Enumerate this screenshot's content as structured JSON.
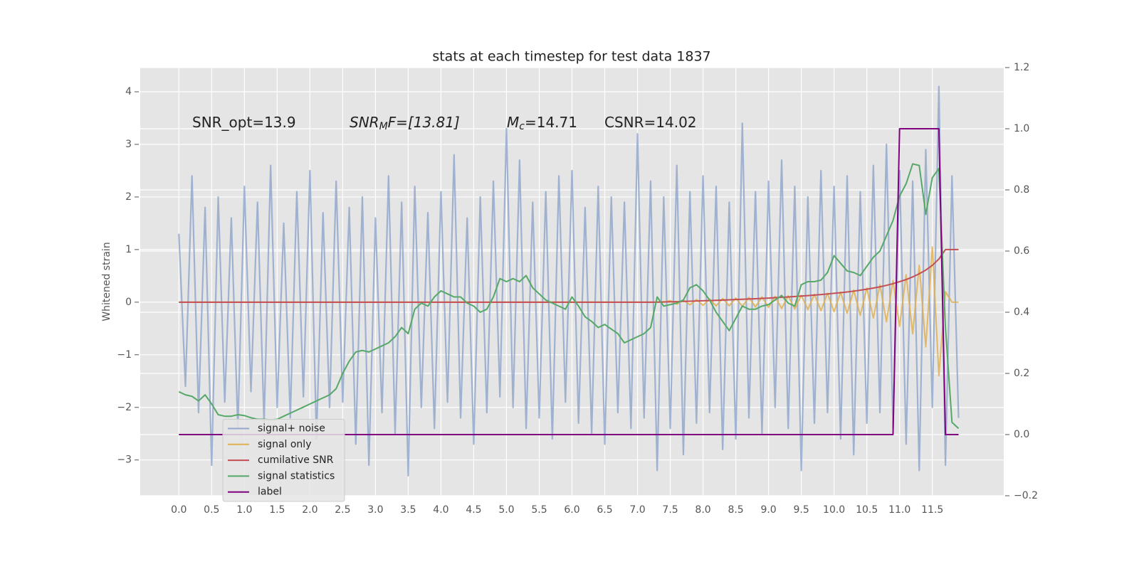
{
  "chart_data": {
    "type": "line",
    "title": "stats at each timestep for test data 1837",
    "y_label": "Whitened strain",
    "annotations": [
      {
        "text": "SNR_opt=13.9"
      },
      {
        "math": "SNR",
        "sub": "M",
        "text": "F=[13.81]"
      },
      {
        "math": "M",
        "sub": "c",
        "text": "=14.71"
      },
      {
        "text": "CSNR=14.02"
      }
    ],
    "xlim": [
      -0.59,
      12.59
    ],
    "ylim": [
      -3.68,
      4.46
    ],
    "y2lim": [
      -0.2,
      1.2
    ],
    "xticks": [
      {
        "value": 0,
        "label": "0.0"
      },
      0.5,
      {
        "value": 1,
        "label": "1.0"
      },
      1.5,
      {
        "value": 2,
        "label": "2.0"
      },
      2.5,
      {
        "value": 3,
        "label": "3.0"
      },
      3.5,
      {
        "value": 4,
        "label": "4.0"
      },
      4.5,
      {
        "value": 5,
        "label": "5.0"
      },
      5.5,
      {
        "value": 6,
        "label": "6.0"
      },
      6.5,
      {
        "value": 7,
        "label": "7.0"
      },
      7.5,
      {
        "value": 8,
        "label": "8.0"
      },
      8.5,
      {
        "value": 9,
        "label": "9.0"
      },
      9.5,
      {
        "value": 10,
        "label": "10.0"
      },
      10.5,
      {
        "value": 11,
        "label": "11.0"
      },
      11.5
    ],
    "yticks": [
      {
        "value": -3,
        "label": "−3"
      },
      {
        "value": -2,
        "label": "−2"
      },
      {
        "value": -1,
        "label": "−1"
      },
      0,
      1,
      2,
      3,
      4
    ],
    "y2ticks": [
      {
        "value": -0.2,
        "label": "−0.2"
      },
      {
        "value": 0,
        "label": "0.0"
      },
      0.2,
      0.4,
      0.6,
      0.8,
      {
        "value": 1,
        "label": "1.0"
      },
      1.2
    ],
    "grid": true,
    "legend": "lower left",
    "x": [
      0,
      0.1,
      0.2,
      0.3,
      0.4,
      0.5,
      0.6,
      0.7,
      0.8,
      0.9,
      1,
      1.1,
      1.2,
      1.3,
      1.4,
      1.5,
      1.6,
      1.7,
      1.8,
      1.9,
      2,
      2.1,
      2.2,
      2.3,
      2.4,
      2.5,
      2.6,
      2.7,
      2.8,
      2.9,
      3,
      3.1,
      3.2,
      3.3,
      3.4,
      3.5,
      3.6,
      3.7,
      3.8,
      3.9,
      4,
      4.1,
      4.2,
      4.3,
      4.4,
      4.5,
      4.6,
      4.7,
      4.8,
      4.9,
      5,
      5.1,
      5.2,
      5.3,
      5.4,
      5.5,
      5.6,
      5.7,
      5.8,
      5.9,
      6,
      6.1,
      6.2,
      6.3,
      6.4,
      6.5,
      6.6,
      6.7,
      6.8,
      6.9,
      7,
      7.1,
      7.2,
      7.3,
      7.4,
      7.5,
      7.6,
      7.7,
      7.8,
      7.9,
      8,
      8.1,
      8.2,
      8.3,
      8.4,
      8.5,
      8.6,
      8.7,
      8.8,
      8.9,
      9,
      9.1,
      9.2,
      9.3,
      9.4,
      9.5,
      9.6,
      9.7,
      9.8,
      9.9,
      10,
      10.1,
      10.2,
      10.3,
      10.4,
      10.5,
      10.6,
      10.7,
      10.8,
      10.9,
      11,
      11.1,
      11.2,
      11.3,
      11.4,
      11.5,
      11.6,
      11.7,
      11.8,
      11.9
    ],
    "series": [
      {
        "name": "signal+ noise",
        "color": "#93a8cc",
        "values": [
          1.3,
          -1.6,
          2.4,
          -2.1,
          1.8,
          -3.1,
          2.0,
          -1.9,
          1.6,
          -2.4,
          2.2,
          -1.7,
          1.9,
          -2.3,
          2.6,
          -2.0,
          1.5,
          -2.2,
          2.1,
          -1.8,
          2.5,
          -2.6,
          1.7,
          -2.0,
          2.3,
          -1.9,
          1.8,
          -2.7,
          2.0,
          -3.1,
          1.6,
          -2.1,
          2.4,
          -2.5,
          1.9,
          -3.3,
          2.2,
          -2.0,
          1.7,
          -2.4,
          2.1,
          -1.9,
          2.8,
          -2.2,
          1.6,
          -2.7,
          2.0,
          -2.1,
          2.3,
          -1.8,
          3.3,
          -2.0,
          2.7,
          -2.4,
          1.9,
          -2.2,
          2.1,
          -2.6,
          2.4,
          -1.9,
          2.5,
          -2.3,
          1.8,
          -2.5,
          2.2,
          -2.7,
          2.0,
          -2.1,
          1.9,
          -2.4,
          3.2,
          -2.2,
          2.3,
          -3.2,
          2.0,
          -2.4,
          2.6,
          -2.9,
          2.1,
          -2.3,
          2.4,
          -2.1,
          2.2,
          -2.8,
          1.9,
          -2.6,
          3.4,
          -2.2,
          2.1,
          -2.5,
          2.3,
          -2.0,
          2.7,
          -2.4,
          2.2,
          -3.2,
          2.0,
          -2.3,
          2.5,
          -2.1,
          2.2,
          -2.6,
          2.4,
          -2.9,
          2.1,
          -2.3,
          2.6,
          -2.1,
          3.0,
          -2.4,
          2.5,
          -2.7,
          2.3,
          -3.2,
          2.9,
          -2.0,
          4.1,
          -3.1,
          2.4,
          -2.2
        ]
      },
      {
        "name": "signal only",
        "color": "#e0b050",
        "values": [
          0,
          0,
          0,
          0,
          0,
          0,
          0,
          0,
          0,
          0,
          0,
          0,
          0,
          0,
          0,
          0,
          0,
          0,
          0,
          0,
          0,
          0,
          0,
          0,
          0,
          0,
          0,
          0,
          0,
          0,
          0,
          0,
          0,
          0,
          0,
          0,
          0,
          0,
          0,
          0,
          0,
          0,
          0,
          0,
          0,
          0,
          0,
          0,
          0,
          0,
          0,
          0,
          0,
          0,
          0,
          0,
          0,
          0,
          0,
          0,
          0,
          0,
          0,
          0,
          0,
          0,
          0,
          0,
          0,
          0,
          0,
          0,
          0,
          0,
          0,
          0.03,
          -0.04,
          0.04,
          -0.05,
          0.05,
          -0.06,
          0.06,
          -0.07,
          0.07,
          -0.07,
          0.08,
          -0.08,
          0.09,
          -0.09,
          0.1,
          -0.1,
          0.11,
          -0.12,
          0.12,
          -0.13,
          0.13,
          -0.14,
          0.15,
          -0.16,
          0.17,
          -0.18,
          0.19,
          -0.21,
          0.23,
          -0.25,
          0.27,
          -0.3,
          0.33,
          -0.37,
          0.41,
          -0.46,
          0.52,
          -0.6,
          0.7,
          -0.85,
          1.05,
          -1.4,
          0.2,
          0,
          0
        ]
      },
      {
        "name": "cumilative SNR",
        "color": "#c44e52",
        "values": [
          0,
          0,
          0,
          0,
          0,
          0,
          0,
          0,
          0,
          0,
          0,
          0,
          0,
          0,
          0,
          0,
          0,
          0,
          0,
          0,
          0,
          0,
          0,
          0,
          0,
          0,
          0,
          0,
          0,
          0,
          0,
          0,
          0,
          0,
          0,
          0,
          0,
          0,
          0,
          0,
          0,
          0,
          0,
          0,
          0,
          0,
          0,
          0,
          0,
          0,
          0,
          0,
          0,
          0,
          0,
          0,
          0,
          0,
          0,
          0,
          0,
          0,
          0,
          0,
          0,
          0,
          0,
          0,
          0,
          0,
          0,
          0,
          0,
          0.002,
          0.004,
          0.006,
          0.01,
          0.014,
          0.018,
          0.022,
          0.026,
          0.03,
          0.035,
          0.04,
          0.045,
          0.05,
          0.055,
          0.06,
          0.066,
          0.072,
          0.078,
          0.085,
          0.092,
          0.1,
          0.108,
          0.116,
          0.125,
          0.135,
          0.145,
          0.156,
          0.168,
          0.18,
          0.194,
          0.21,
          0.227,
          0.246,
          0.268,
          0.292,
          0.32,
          0.352,
          0.39,
          0.43,
          0.48,
          0.54,
          0.61,
          0.7,
          0.82,
          1.0,
          1.0,
          1.0
        ]
      },
      {
        "name": "signal statistics",
        "color": "#55a868",
        "axis": "y2",
        "values": [
          0.14,
          0.13,
          0.125,
          0.11,
          0.13,
          0.1,
          0.065,
          0.06,
          0.06,
          0.065,
          0.062,
          0.055,
          0.05,
          0.05,
          0.048,
          0.05,
          0.06,
          0.07,
          0.08,
          0.09,
          0.1,
          0.11,
          0.12,
          0.13,
          0.15,
          0.2,
          0.24,
          0.27,
          0.275,
          0.27,
          0.28,
          0.29,
          0.3,
          0.32,
          0.35,
          0.33,
          0.41,
          0.43,
          0.42,
          0.45,
          0.47,
          0.46,
          0.45,
          0.45,
          0.43,
          0.42,
          0.4,
          0.41,
          0.45,
          0.51,
          0.5,
          0.51,
          0.5,
          0.52,
          0.48,
          0.46,
          0.44,
          0.43,
          0.42,
          0.41,
          0.45,
          0.42,
          0.385,
          0.37,
          0.35,
          0.36,
          0.345,
          0.33,
          0.3,
          0.31,
          0.32,
          0.33,
          0.35,
          0.45,
          0.42,
          0.425,
          0.43,
          0.44,
          0.48,
          0.49,
          0.47,
          0.44,
          0.4,
          0.37,
          0.34,
          0.38,
          0.42,
          0.41,
          0.41,
          0.42,
          0.425,
          0.44,
          0.455,
          0.43,
          0.42,
          0.49,
          0.5,
          0.5,
          0.505,
          0.53,
          0.585,
          0.56,
          0.535,
          0.53,
          0.52,
          0.55,
          0.58,
          0.6,
          0.65,
          0.7,
          0.78,
          0.82,
          0.885,
          0.88,
          0.72,
          0.84,
          0.87,
          0.35,
          0.04,
          0.02
        ]
      },
      {
        "name": "label",
        "color": "#800080",
        "axis": "y2",
        "values": [
          0,
          0,
          0,
          0,
          0,
          0,
          0,
          0,
          0,
          0,
          0,
          0,
          0,
          0,
          0,
          0,
          0,
          0,
          0,
          0,
          0,
          0,
          0,
          0,
          0,
          0,
          0,
          0,
          0,
          0,
          0,
          0,
          0,
          0,
          0,
          0,
          0,
          0,
          0,
          0,
          0,
          0,
          0,
          0,
          0,
          0,
          0,
          0,
          0,
          0,
          0,
          0,
          0,
          0,
          0,
          0,
          0,
          0,
          0,
          0,
          0,
          0,
          0,
          0,
          0,
          0,
          0,
          0,
          0,
          0,
          0,
          0,
          0,
          0,
          0,
          0,
          0,
          0,
          0,
          0,
          0,
          0,
          0,
          0,
          0,
          0,
          0,
          0,
          0,
          0,
          0,
          0,
          0,
          0,
          0,
          0,
          0,
          0,
          0,
          0,
          0,
          0,
          0,
          0,
          0,
          0,
          0,
          0,
          0,
          0,
          1,
          1,
          1,
          1,
          1,
          1,
          1,
          0,
          0,
          0
        ]
      }
    ]
  }
}
